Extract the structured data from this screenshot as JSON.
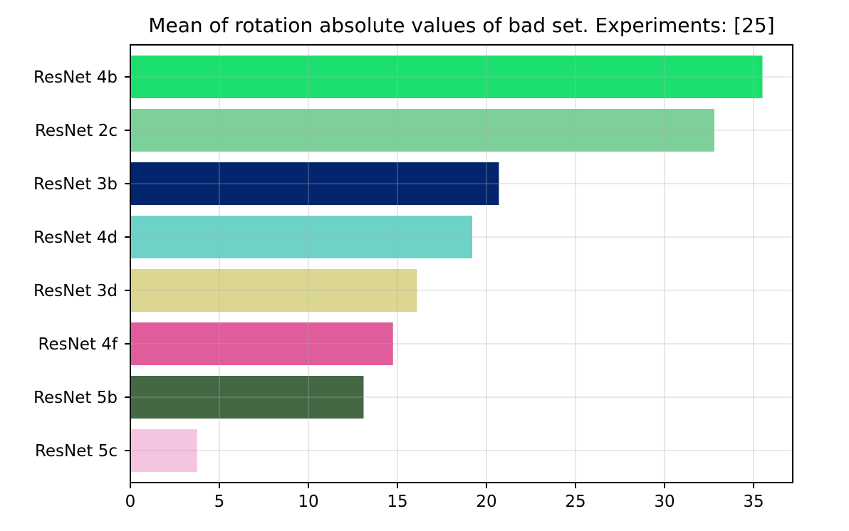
{
  "chart_data": {
    "type": "bar",
    "orientation": "horizontal",
    "title": "Mean of rotation absolute values of bad set. Experiments: [25]",
    "xlabel": "",
    "ylabel": "",
    "categories": [
      "ResNet 4b",
      "ResNet 2c",
      "ResNet 3b",
      "ResNet 4d",
      "ResNet 3d",
      "ResNet 4f",
      "ResNet 5b",
      "ResNet 5c"
    ],
    "values": [
      35.5,
      32.8,
      20.7,
      19.2,
      16.1,
      14.75,
      13.1,
      3.75
    ],
    "colors": [
      "#1ce06e",
      "#7dd09a",
      "#02256d",
      "#6ed2c6",
      "#dbd791",
      "#e05c9b",
      "#456844",
      "#f5c4e0"
    ],
    "xlim": [
      0,
      37.2
    ],
    "xticks": [
      0,
      5,
      10,
      15,
      20,
      25,
      30,
      35
    ],
    "grid": true
  }
}
